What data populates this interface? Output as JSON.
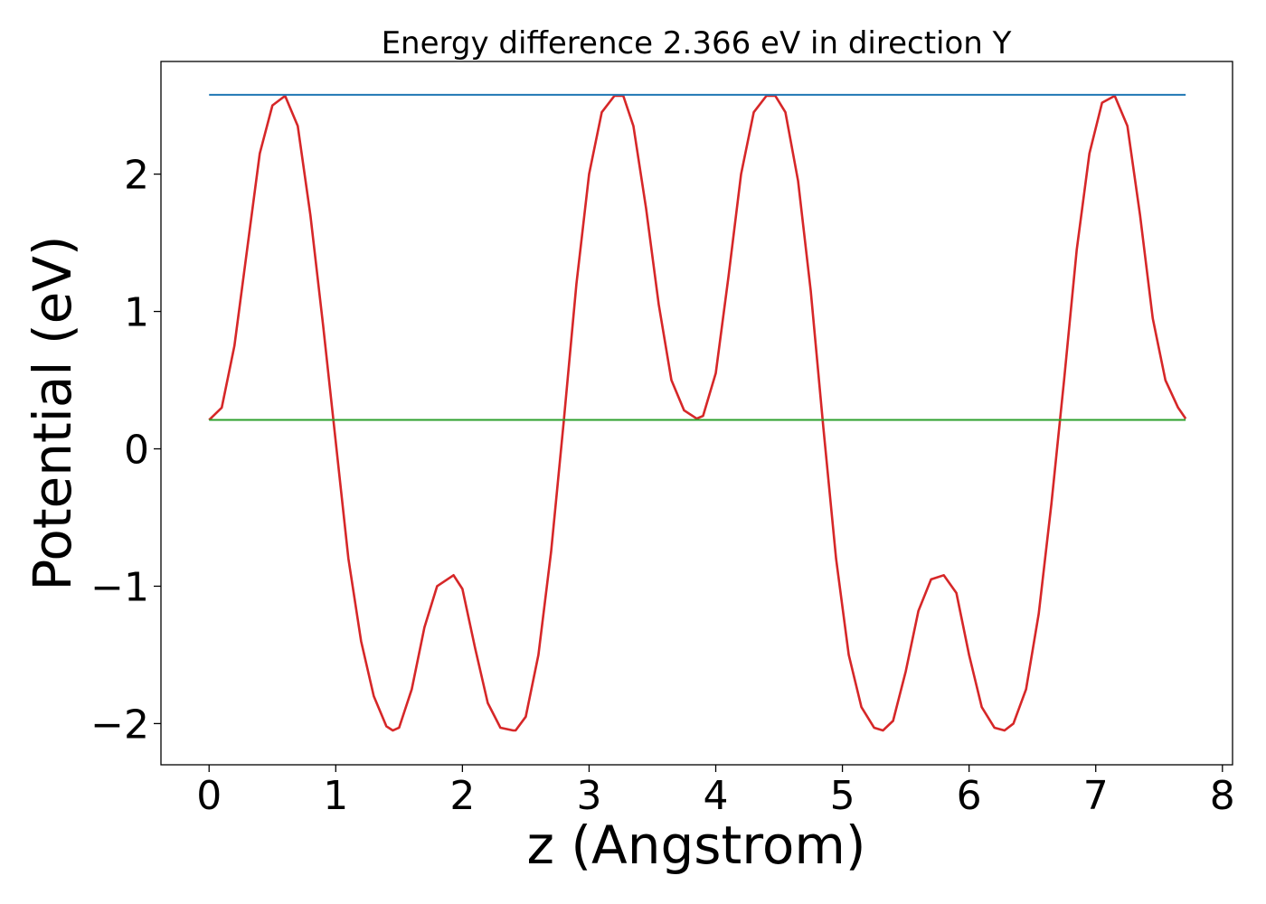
{
  "chart_data": {
    "type": "line",
    "title": "Energy difference 2.366 eV in direction Y",
    "xlabel": "z (Angstrom)",
    "ylabel": "Potential (eV)",
    "xlim": [
      -0.38,
      8.08
    ],
    "ylim": [
      -2.3,
      2.82
    ],
    "xticks": [
      0,
      1,
      2,
      3,
      4,
      5,
      6,
      7,
      8
    ],
    "xtick_labels": [
      "0",
      "1",
      "2",
      "3",
      "4",
      "5",
      "6",
      "7",
      "8"
    ],
    "yticks": [
      -2,
      -1,
      0,
      1,
      2
    ],
    "ytick_labels": [
      "−2",
      "−1",
      "0",
      "1",
      "2"
    ],
    "grid": false,
    "series": [
      {
        "color": "#d62728",
        "x": [
          0.0,
          0.1,
          0.2,
          0.3,
          0.4,
          0.5,
          0.6,
          0.7,
          0.8,
          0.9,
          1.0,
          1.1,
          1.2,
          1.3,
          1.4,
          1.45,
          1.5,
          1.6,
          1.7,
          1.8,
          1.93,
          2.0,
          2.1,
          2.2,
          2.3,
          2.4,
          2.42,
          2.5,
          2.6,
          2.7,
          2.8,
          2.9,
          3.0,
          3.1,
          3.2,
          3.27,
          3.35,
          3.45,
          3.55,
          3.65,
          3.75,
          3.85,
          3.9,
          4.0,
          4.1,
          4.2,
          4.3,
          4.4,
          4.47,
          4.55,
          4.65,
          4.75,
          4.85,
          4.95,
          5.05,
          5.15,
          5.25,
          5.32,
          5.4,
          5.5,
          5.6,
          5.7,
          5.8,
          5.9,
          6.0,
          6.1,
          6.2,
          6.28,
          6.35,
          6.45,
          6.55,
          6.65,
          6.75,
          6.85,
          6.95,
          7.05,
          7.15,
          7.25,
          7.35,
          7.45,
          7.55,
          7.65,
          7.71
        ],
        "y": [
          0.21,
          0.3,
          0.75,
          1.45,
          2.15,
          2.5,
          2.57,
          2.35,
          1.7,
          0.9,
          0.05,
          -0.8,
          -1.4,
          -1.8,
          -2.02,
          -2.05,
          -2.03,
          -1.75,
          -1.3,
          -1.0,
          -0.92,
          -1.02,
          -1.45,
          -1.85,
          -2.03,
          -2.05,
          -2.05,
          -1.95,
          -1.5,
          -0.75,
          0.2,
          1.2,
          2.0,
          2.45,
          2.57,
          2.57,
          2.35,
          1.75,
          1.05,
          0.5,
          0.28,
          0.22,
          0.24,
          0.55,
          1.25,
          2.0,
          2.45,
          2.57,
          2.57,
          2.45,
          1.95,
          1.15,
          0.15,
          -0.8,
          -1.5,
          -1.88,
          -2.03,
          -2.05,
          -1.98,
          -1.62,
          -1.18,
          -0.95,
          -0.92,
          -1.05,
          -1.5,
          -1.88,
          -2.03,
          -2.05,
          -2.0,
          -1.75,
          -1.2,
          -0.4,
          0.5,
          1.45,
          2.15,
          2.52,
          2.57,
          2.35,
          1.7,
          0.95,
          0.5,
          0.3,
          0.22
        ]
      },
      {
        "color": "#1f77b4",
        "x": [
          0.0,
          7.71
        ],
        "y": [
          2.577,
          2.577
        ]
      },
      {
        "color": "#2ca02c",
        "x": [
          0.0,
          7.71
        ],
        "y": [
          0.211,
          0.211
        ]
      }
    ]
  }
}
